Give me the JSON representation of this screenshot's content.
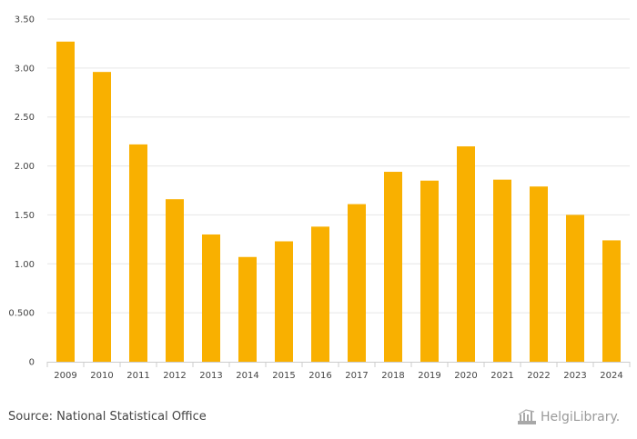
{
  "chart_data": {
    "type": "bar",
    "categories": [
      "2009",
      "2010",
      "2011",
      "2012",
      "2013",
      "2014",
      "2015",
      "2016",
      "2017",
      "2018",
      "2019",
      "2020",
      "2021",
      "2022",
      "2023",
      "2024"
    ],
    "values": [
      3.27,
      2.96,
      2.22,
      1.66,
      1.3,
      1.07,
      1.23,
      1.38,
      1.61,
      1.94,
      1.85,
      2.2,
      1.86,
      1.79,
      1.5,
      1.24
    ],
    "ylim": [
      0,
      3.5
    ],
    "yticks": [
      0,
      0.5,
      1.0,
      1.5,
      2.0,
      2.5,
      3.0,
      3.5
    ],
    "ytick_labels": [
      "0",
      "0.500",
      "1.00",
      "1.50",
      "2.00",
      "2.50",
      "3.00",
      "3.50"
    ],
    "title": "",
    "xlabel": "",
    "ylabel": "",
    "grid": true,
    "bar_color": "#f9b000"
  },
  "footer": {
    "source": "Source: National Statistical Office",
    "logo_text": "HelgiLibrary."
  }
}
